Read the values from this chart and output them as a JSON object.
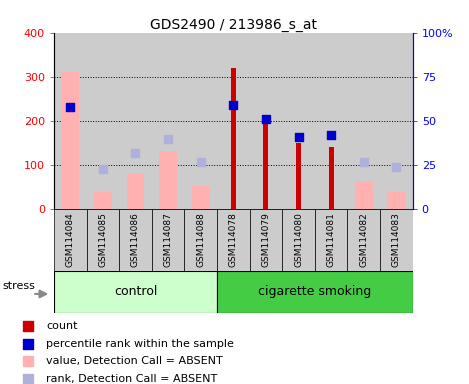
{
  "title": "GDS2490 / 213986_s_at",
  "samples": [
    "GSM114084",
    "GSM114085",
    "GSM114086",
    "GSM114087",
    "GSM114088",
    "GSM114078",
    "GSM114079",
    "GSM114080",
    "GSM114081",
    "GSM114082",
    "GSM114083"
  ],
  "count": {
    "GSM114084": null,
    "GSM114085": null,
    "GSM114086": null,
    "GSM114087": null,
    "GSM114088": null,
    "GSM114078": 320,
    "GSM114079": 205,
    "GSM114080": 150,
    "GSM114081": 140,
    "GSM114082": null,
    "GSM114083": null
  },
  "percentile_rank": {
    "GSM114084": 58,
    "GSM114085": null,
    "GSM114086": null,
    "GSM114087": null,
    "GSM114088": null,
    "GSM114078": 59,
    "GSM114079": 51,
    "GSM114080": 41,
    "GSM114081": 42,
    "GSM114082": null,
    "GSM114083": null
  },
  "value_absent": {
    "GSM114084": 310,
    "GSM114085": 40,
    "GSM114086": 83,
    "GSM114087": 132,
    "GSM114088": 53,
    "GSM114078": null,
    "GSM114079": null,
    "GSM114080": null,
    "GSM114081": null,
    "GSM114082": 65,
    "GSM114083": 38
  },
  "rank_absent": {
    "GSM114084": null,
    "GSM114085": 23,
    "GSM114086": 32,
    "GSM114087": 40,
    "GSM114088": 27,
    "GSM114078": null,
    "GSM114079": null,
    "GSM114080": null,
    "GSM114081": null,
    "GSM114082": 27,
    "GSM114083": 24
  },
  "control_indices": [
    0,
    1,
    2,
    3,
    4
  ],
  "smoking_indices": [
    5,
    6,
    7,
    8,
    9,
    10
  ],
  "ylim_left": [
    0,
    400
  ],
  "ylim_right": [
    0,
    100
  ],
  "yticks_left": [
    0,
    100,
    200,
    300,
    400
  ],
  "yticks_right": [
    0,
    25,
    50,
    75,
    100
  ],
  "ytick_labels_right": [
    "0",
    "25",
    "50",
    "75",
    "100%"
  ],
  "color_count": "#cc0000",
  "color_rank": "#0000cc",
  "color_value_absent": "#ffb0b0",
  "color_rank_absent": "#b0b0dd",
  "color_control_bg": "#ccffcc",
  "color_smoking_bg": "#44cc44",
  "color_sample_bg": "#cccccc",
  "stress_label": "stress",
  "control_label": "control",
  "smoking_label": "cigarette smoking",
  "legend_items": [
    {
      "label": "count",
      "color": "#cc0000"
    },
    {
      "label": "percentile rank within the sample",
      "color": "#0000cc"
    },
    {
      "label": "value, Detection Call = ABSENT",
      "color": "#ffb0b0"
    },
    {
      "label": "rank, Detection Call = ABSENT",
      "color": "#b0b0dd"
    }
  ]
}
